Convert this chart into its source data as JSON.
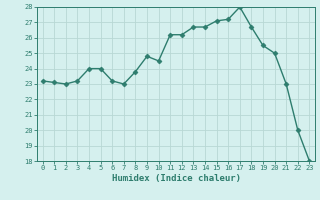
{
  "x": [
    0,
    1,
    2,
    3,
    4,
    5,
    6,
    7,
    8,
    9,
    10,
    11,
    12,
    13,
    14,
    15,
    16,
    17,
    18,
    19,
    20,
    21,
    22,
    23
  ],
  "y": [
    23.2,
    23.1,
    23.0,
    23.2,
    24.0,
    24.0,
    23.2,
    23.0,
    23.8,
    24.8,
    24.5,
    26.2,
    26.2,
    26.7,
    26.7,
    27.1,
    27.2,
    28.0,
    26.7,
    25.5,
    25.0,
    23.0,
    20.0,
    18.0
  ],
  "line_color": "#2e7d6e",
  "marker": "D",
  "marker_size": 2.5,
  "bg_color": "#d5f0ee",
  "grid_color": "#b8d8d4",
  "tick_color": "#2e7d6e",
  "label_color": "#2e7d6e",
  "xlabel": "Humidex (Indice chaleur)",
  "ylim": [
    18,
    28
  ],
  "yticks": [
    18,
    19,
    20,
    21,
    22,
    23,
    24,
    25,
    26,
    27,
    28
  ],
  "xticks": [
    0,
    1,
    2,
    3,
    4,
    5,
    6,
    7,
    8,
    9,
    10,
    11,
    12,
    13,
    14,
    15,
    16,
    17,
    18,
    19,
    20,
    21,
    22,
    23
  ]
}
